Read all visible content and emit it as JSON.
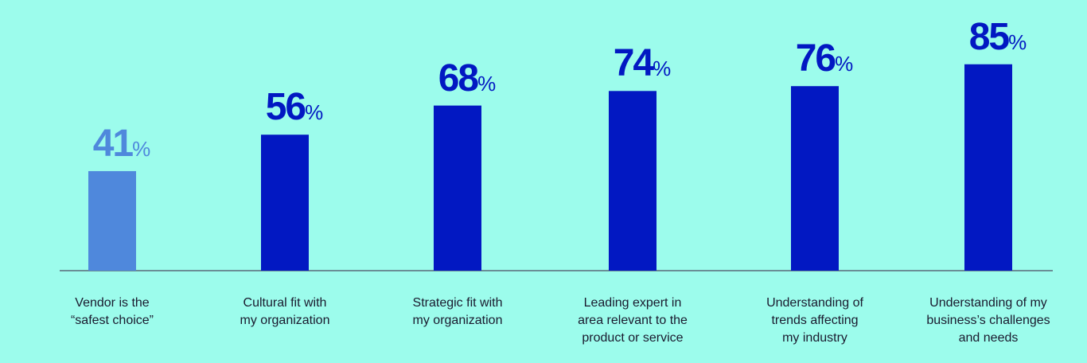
{
  "chart_data": {
    "type": "bar",
    "categories": [
      "Vendor is the\n“safest choice”",
      "Cultural fit with\nmy organization",
      "Strategic fit with\nmy organization",
      "Leading expert in\narea relevant to the\nproduct or service",
      "Understanding of\ntrends affecting\nmy industry",
      "Understanding of my\nbusiness’s challenges\nand needs"
    ],
    "values": [
      41,
      56,
      68,
      74,
      76,
      85
    ],
    "value_labels": [
      "41",
      "56",
      "68",
      "74",
      "76",
      "85"
    ],
    "unit": "%",
    "ylim": [
      0,
      100
    ],
    "grid": false,
    "colors": {
      "background": "#9cfcec",
      "highlight_bar": "#4f88dc",
      "bar": "#0218c2",
      "highlight_label": "#4f88dc",
      "label": "#0218c2",
      "axis": "#5a6a78"
    },
    "highlight_index": 0
  }
}
